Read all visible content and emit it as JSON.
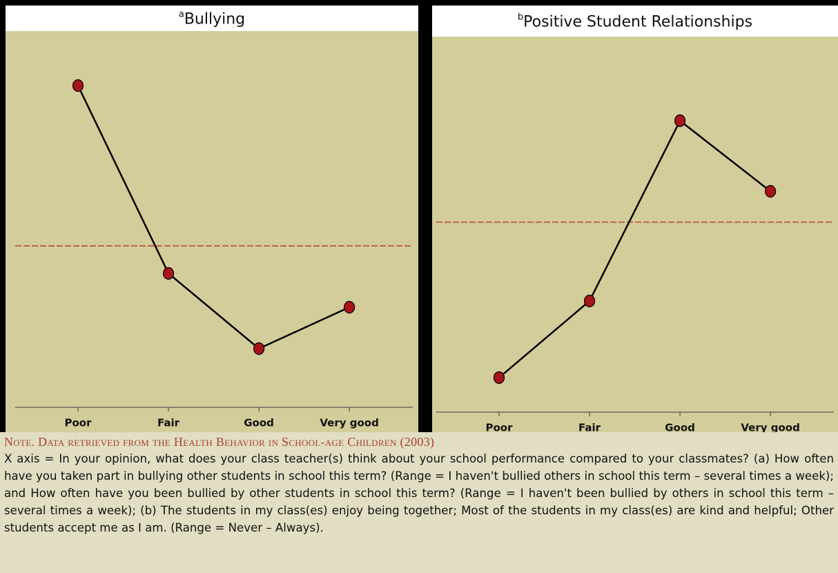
{
  "chart_data": [
    {
      "type": "line",
      "title": "Bullying",
      "title_superscript": "a",
      "categories": [
        "Poor",
        "Fair",
        "Good",
        "Very good"
      ],
      "values": [
        85.5,
        35.6,
        15.6,
        26.6
      ],
      "color": "#000000",
      "marker_color": "#a8141a",
      "reference_line": 42.9,
      "reference_color": "#b03030",
      "ylim": [
        0,
        100
      ]
    },
    {
      "type": "line",
      "title": "Positive Student Relationships",
      "title_superscript": "b",
      "categories": [
        "Poor",
        "Fair",
        "Good",
        "Very good"
      ],
      "values": [
        9.2,
        29.6,
        77.6,
        58.8
      ],
      "color": "#000000",
      "marker_color": "#a8141a",
      "reference_line": 50.6,
      "reference_color": "#b03030",
      "ylim": [
        0,
        100
      ]
    }
  ],
  "note": {
    "heading": "Note. Data retrieved from the Health Behavior in School-age Children (2003)",
    "text": "X axis = In your opinion, what does your class teacher(s) think about your school performance compared to your classmates? (a) How often have you taken part in bullying other students in school this term? (Range = I haven't bullied others in school this term – several times a week); and How often have you been bullied by other students in school this term? (Range = I haven't been bullied by others in school this term – several times a week); (b) The students in my class(es) enjoy being together; Most of the students in my class(es) are kind and helpful; Other students accept me as I am. (Range = Never – Always)."
  }
}
